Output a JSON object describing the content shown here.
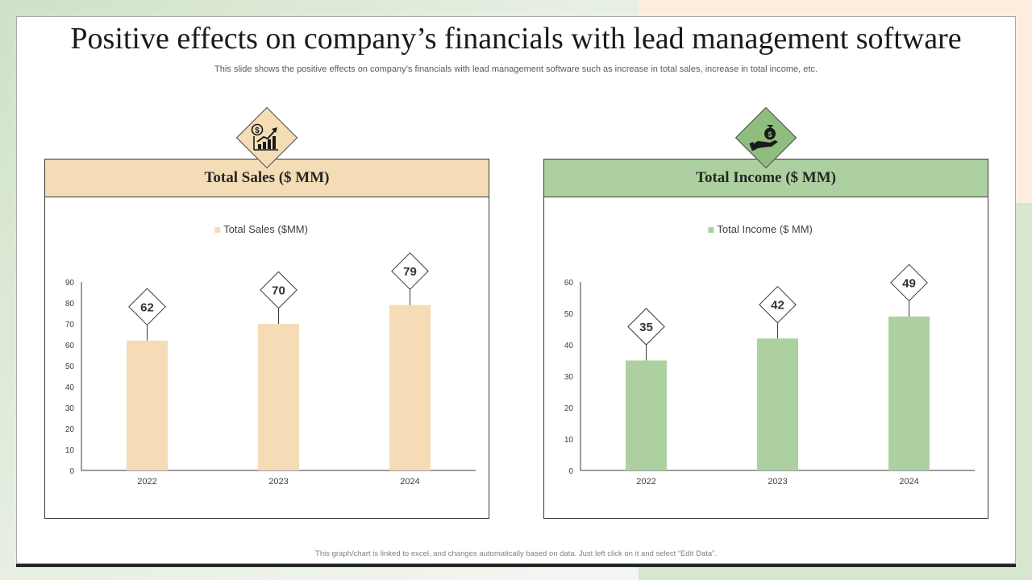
{
  "slide": {
    "title": "Positive effects on company’s financials with lead management software",
    "subtitle": "This slide shows the positive effects on company’s financials with lead management software such as increase in total sales, increase in total income, etc.",
    "footnote": "This graph/chart is linked to excel, and changes automatically based on data. Just left click on it and select “Edit Data”."
  },
  "panels": {
    "sales": {
      "header": "Total Sales ($ MM)",
      "icon": "sales-growth-icon",
      "header_color": "#f3dcb6"
    },
    "income": {
      "header": "Total Income ($ MM)",
      "icon": "money-bag-hand-icon",
      "header_color": "#add0a0"
    }
  },
  "chart_data": [
    {
      "type": "bar",
      "title": "Total Sales ($ MM)",
      "legend": "Total Sales ($MM)",
      "legend_position": "top-center",
      "categories": [
        "2022",
        "2023",
        "2024"
      ],
      "values": [
        62,
        70,
        79
      ],
      "ylim": [
        0,
        90
      ],
      "yticks": [
        0,
        10,
        20,
        30,
        40,
        50,
        60,
        70,
        80,
        90
      ],
      "color": "#f5dcb6",
      "xlabel": "",
      "ylabel": ""
    },
    {
      "type": "bar",
      "title": "Total Income ($ MM)",
      "legend": "Total Income ($ MM)",
      "legend_position": "top-center",
      "categories": [
        "2022",
        "2023",
        "2024"
      ],
      "values": [
        35,
        42,
        49
      ],
      "ylim": [
        0,
        60
      ],
      "yticks": [
        0,
        10,
        20,
        30,
        40,
        50,
        60
      ],
      "color": "#add0a0",
      "xlabel": "",
      "ylabel": ""
    }
  ]
}
